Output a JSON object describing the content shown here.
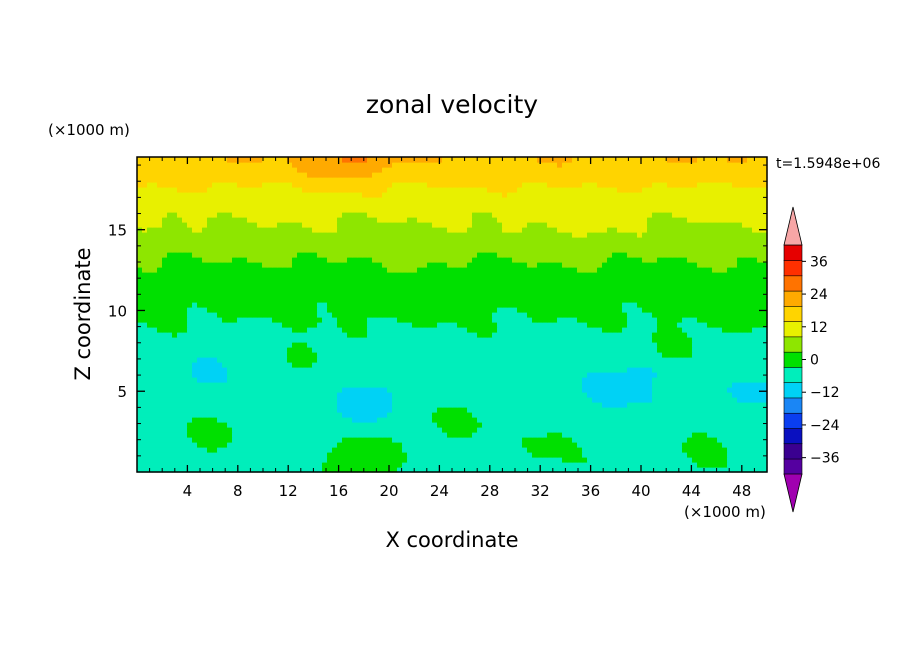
{
  "chart_data": {
    "type": "heatmap",
    "title": "zonal velocity",
    "xlabel": "X coordinate",
    "ylabel": "Z coordinate",
    "x_unit": "(×1000 m)",
    "y_unit": "(×1000 m)",
    "time_label": "t=1.5948e+06",
    "xlim": [
      0,
      50
    ],
    "ylim": [
      0,
      19.5
    ],
    "x_ticks": [
      4,
      8,
      12,
      16,
      20,
      24,
      28,
      32,
      36,
      40,
      44,
      48
    ],
    "y_ticks": [
      5,
      10,
      15
    ],
    "colorbar": {
      "levels": [
        -42,
        -36,
        -30,
        -24,
        -18,
        -12,
        -6,
        0,
        6,
        12,
        18,
        24,
        30,
        36,
        42
      ],
      "tick_labels": [
        "36",
        "24",
        "12",
        "0",
        "−12",
        "−24",
        "−36"
      ],
      "tick_values": [
        36,
        24,
        12,
        0,
        -12,
        -24,
        -36
      ],
      "colors": [
        "#5500a0",
        "#3a0090",
        "#0a10c0",
        "#0a3ef0",
        "#1a86f5",
        "#00d2f5",
        "#00eebb",
        "#00e000",
        "#8ee600",
        "#e8f000",
        "#ffd400",
        "#ffaa00",
        "#ff7300",
        "#ff3000",
        "#e60000"
      ],
      "under_color": "#a000b0",
      "over_color": "#f7a6a6"
    },
    "field_z_profile": [
      {
        "z": 0.5,
        "u": -2
      },
      {
        "z": 2,
        "u": -3
      },
      {
        "z": 4,
        "u": -4
      },
      {
        "z": 6,
        "u": -4
      },
      {
        "z": 8,
        "u": -2
      },
      {
        "z": 10,
        "u": 1
      },
      {
        "z": 12,
        "u": 3
      },
      {
        "z": 13.5,
        "u": 7
      },
      {
        "z": 15,
        "u": 11
      },
      {
        "z": 16.5,
        "u": 14
      },
      {
        "z": 18,
        "u": 19
      },
      {
        "z": 19.5,
        "u": 24
      }
    ],
    "field_anomalies": [
      {
        "x": 5.5,
        "z": 6.2,
        "u": -6,
        "r": 1.4
      },
      {
        "x": 6,
        "z": 2.6,
        "u": 6,
        "r": 2.2
      },
      {
        "x": 13,
        "z": 7.2,
        "u": 6,
        "r": 1.4
      },
      {
        "x": 18,
        "z": 0.9,
        "u": 9,
        "r": 2.4
      },
      {
        "x": 18.5,
        "z": 4.4,
        "u": -6,
        "r": 2.2
      },
      {
        "x": 25.5,
        "z": 3.2,
        "u": 6,
        "r": 2.4
      },
      {
        "x": 20,
        "z": 11.5,
        "u": 3,
        "r": 3
      },
      {
        "x": 38.5,
        "z": 5.5,
        "u": -5,
        "r": 2.5
      },
      {
        "x": 42.5,
        "z": 7.6,
        "u": 5,
        "r": 1.5
      },
      {
        "x": 33,
        "z": 1.8,
        "u": 5,
        "r": 2.2
      },
      {
        "x": 45,
        "z": 1.5,
        "u": 5,
        "r": 2.2
      },
      {
        "x": 49,
        "z": 5,
        "u": -5,
        "r": 1.6
      },
      {
        "x": 16.5,
        "z": 19.4,
        "u": 8,
        "r": 3
      },
      {
        "x": 47,
        "z": 10.5,
        "u": 3,
        "r": 3.2
      },
      {
        "x": 34,
        "z": 15,
        "u": 2,
        "r": 4
      },
      {
        "x": 1,
        "z": 11,
        "u": 2,
        "r": 2
      }
    ]
  }
}
